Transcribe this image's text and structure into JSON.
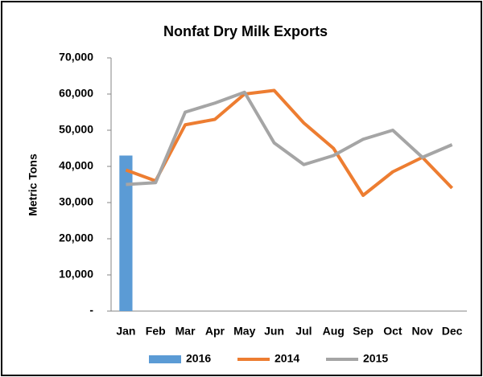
{
  "chart_data": {
    "type": "bar",
    "title": "Nonfat Dry Milk Exports",
    "y_label": "Metric Tons",
    "categories": [
      "Jan",
      "Feb",
      "Mar",
      "Apr",
      "May",
      "Jun",
      "Jul",
      "Aug",
      "Sep",
      "Oct",
      "Nov",
      "Dec"
    ],
    "series": [
      {
        "name": "2016",
        "type": "bar",
        "color": "#5b9bd5",
        "values": [
          43000,
          null,
          null,
          null,
          null,
          null,
          null,
          null,
          null,
          null,
          null,
          null
        ]
      },
      {
        "name": "2014",
        "type": "line",
        "color": "#ed7d31",
        "values": [
          39000,
          36000,
          51500,
          53000,
          60000,
          61000,
          52000,
          45000,
          32000,
          38500,
          42500,
          34000
        ]
      },
      {
        "name": "2015",
        "type": "line",
        "color": "#a5a5a5",
        "values": [
          35000,
          35500,
          55000,
          57500,
          60500,
          46500,
          40500,
          43000,
          47500,
          50000,
          42500,
          46000
        ]
      }
    ],
    "ylim": [
      0,
      70000
    ],
    "yticks": [
      {
        "value": 0,
        "label": "-"
      },
      {
        "value": 10000,
        "label": "10,000"
      },
      {
        "value": 20000,
        "label": "20,000"
      },
      {
        "value": 30000,
        "label": "30,000"
      },
      {
        "value": 40000,
        "label": "40,000"
      },
      {
        "value": 50000,
        "label": "50,000"
      },
      {
        "value": 60000,
        "label": "60,000"
      },
      {
        "value": 70000,
        "label": "70,000"
      }
    ],
    "grid": false,
    "legend": "bottom"
  }
}
